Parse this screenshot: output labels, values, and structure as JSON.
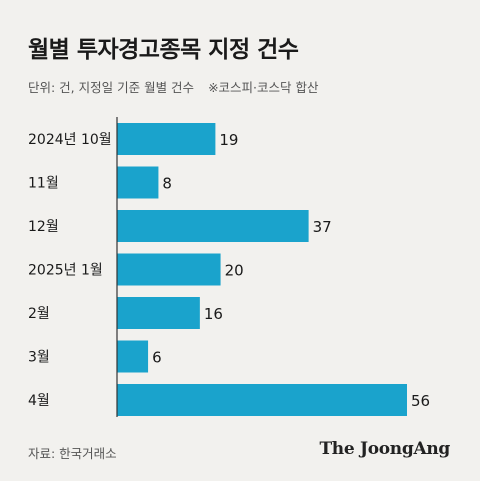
{
  "header": {
    "title": "월별 투자경고종목 지정 건수",
    "subtitle_unit": "단위: 건, 지정일 기준 월별 건수",
    "subtitle_note": "※코스피·코스닥 합산"
  },
  "footer": {
    "source": "자료: 한국거래소",
    "brand": "The JoongAng"
  },
  "colors": {
    "bar": "#1aa3cc",
    "axis": "#333333",
    "background": "#f2f1ee"
  },
  "chart_data": {
    "type": "bar",
    "orientation": "horizontal",
    "title": "월별 투자경고종목 지정 건수",
    "categories": [
      "2024년 10월",
      "11월",
      "12월",
      "2025년 1월",
      "2월",
      "3월",
      "4월"
    ],
    "values": [
      19,
      8,
      37,
      20,
      16,
      6,
      56
    ],
    "xlim": [
      0,
      56
    ],
    "grid": false,
    "legend": "none",
    "data_labels": true
  }
}
